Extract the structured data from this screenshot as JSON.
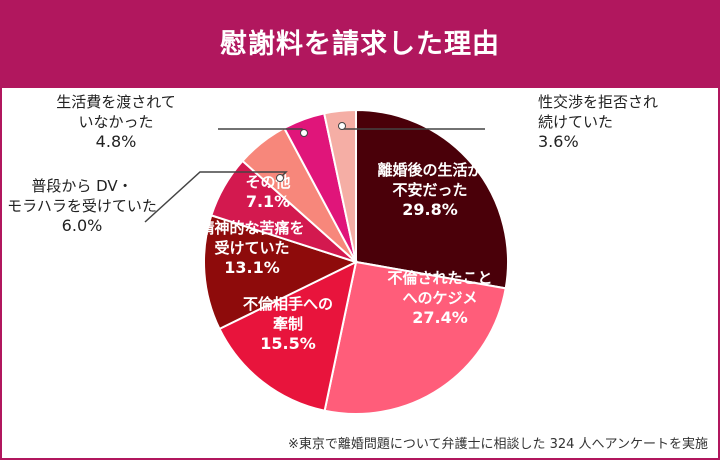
{
  "title": "慰謝料を請求した理由",
  "footnote": "※東京で離婚問題について弁護士に相談した 324 人へアンケートを実施",
  "colors": {
    "brand": "#b1175e",
    "background": "#ffffff"
  },
  "chart_data": {
    "type": "pie",
    "title": "慰謝料を請求した理由",
    "unit": "%",
    "slices": [
      {
        "label_lines": [
          "離婚後の生活が",
          "不安だった"
        ],
        "value_text": "29.8%",
        "value": 29.8,
        "color": "#4a0009",
        "label_position": "inside",
        "text_color": "#ffffff"
      },
      {
        "label_lines": [
          "不倫されたこと",
          "へのケジメ"
        ],
        "value_text": "27.4%",
        "value": 27.4,
        "color": "#ff5d7a",
        "label_position": "inside",
        "text_color": "#ffffff"
      },
      {
        "label_lines": [
          "不倫相手への",
          "牽制"
        ],
        "value_text": "15.5%",
        "value": 15.5,
        "color": "#e8143c",
        "label_position": "inside",
        "text_color": "#ffffff"
      },
      {
        "label_lines": [
          "精神的な苦痛を",
          "受けていた"
        ],
        "value_text": "13.1%",
        "value": 13.1,
        "color": "#8e0b0b",
        "label_position": "inside",
        "text_color": "#ffffff"
      },
      {
        "label_lines": [
          "その他"
        ],
        "value_text": "7.1%",
        "value": 7.1,
        "color": "#d3194f",
        "label_position": "inside",
        "text_color": "#ffffff"
      },
      {
        "label_lines": [
          "普段から DV・",
          "モラハラを受けていた"
        ],
        "value_text": "6.0%",
        "value": 6.0,
        "color": "#f7877b",
        "label_position": "outside",
        "text_color": "#222222"
      },
      {
        "label_lines": [
          "生活費を渡されて",
          "いなかった"
        ],
        "value_text": "4.8%",
        "value": 4.8,
        "color": "#e0157a",
        "label_position": "outside",
        "text_color": "#222222"
      },
      {
        "label_lines": [
          "性交渉を拒否され",
          "続けていた"
        ],
        "value_text": "3.6%",
        "value": 3.6,
        "color": "#f5aea5",
        "label_position": "outside",
        "text_color": "#222222"
      }
    ]
  }
}
